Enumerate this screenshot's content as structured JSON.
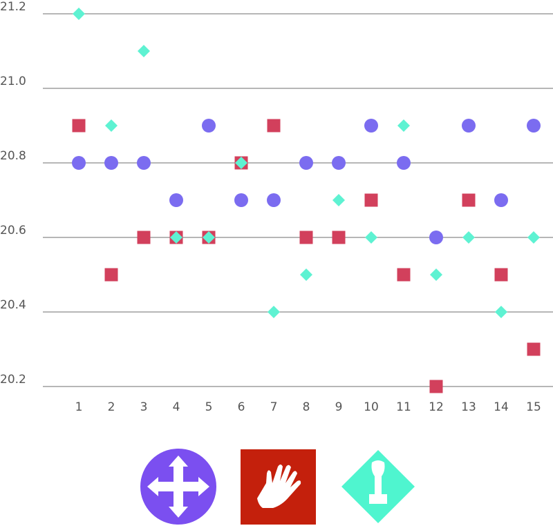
{
  "chart_data": {
    "type": "scatter",
    "title": "",
    "xlabel": "",
    "ylabel": "",
    "x": [
      1,
      2,
      3,
      4,
      5,
      6,
      7,
      8,
      9,
      10,
      11,
      12,
      13,
      14,
      15
    ],
    "x_tick_labels": [
      "1",
      "2",
      "3",
      "4",
      "5",
      "6",
      "7",
      "8",
      "9",
      "10",
      "11",
      "12",
      "13",
      "14",
      "15"
    ],
    "ylim": [
      20.2,
      21.2
    ],
    "y_ticks": [
      20.2,
      20.4,
      20.6,
      20.8,
      21.0,
      21.2
    ],
    "y_tick_labels": [
      "20.2",
      "20.4",
      "20.6",
      "20.8",
      "21.0",
      "21.2"
    ],
    "grid": "horizontal",
    "legend": "bottom-center",
    "series": [
      {
        "name": "circle",
        "marker": "circle",
        "icon": "move-arrows-icon",
        "color": "#7b6cf0",
        "values": [
          20.8,
          20.8,
          20.8,
          20.7,
          20.9,
          20.7,
          20.7,
          20.8,
          20.8,
          20.9,
          20.8,
          20.6,
          20.9,
          20.7,
          20.9
        ]
      },
      {
        "name": "square",
        "marker": "square",
        "icon": "hand-icon",
        "color": "#d2405c",
        "legend_color": "#c4200c",
        "values": [
          20.9,
          20.5,
          20.6,
          20.6,
          20.6,
          20.8,
          20.9,
          20.6,
          20.6,
          20.7,
          20.5,
          20.2,
          20.7,
          20.5,
          20.3
        ]
      },
      {
        "name": "diamond",
        "marker": "diamond",
        "icon": "stamp-icon",
        "color": "#5ef2d2",
        "values": [
          21.2,
          20.9,
          21.1,
          20.6,
          20.6,
          20.8,
          20.4,
          20.5,
          20.7,
          20.6,
          20.9,
          20.5,
          20.6,
          20.4,
          20.6
        ]
      }
    ]
  }
}
